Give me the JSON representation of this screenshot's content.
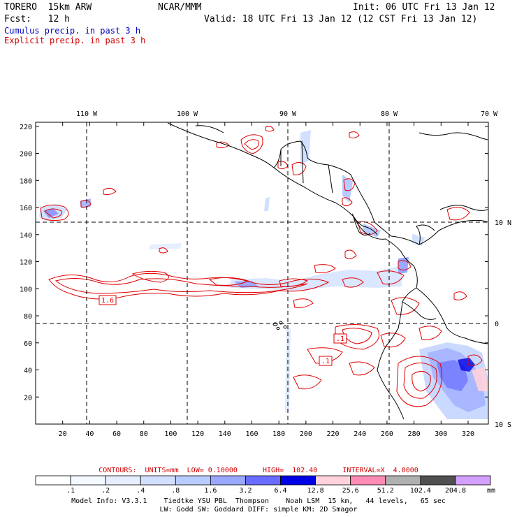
{
  "header": {
    "title": "TORERO  15km ARW",
    "org": "NCAR/MMM",
    "init": "Init: 06 UTC Fri 13 Jan 12",
    "fcst": "Fcst:   12 h",
    "valid": "Valid: 18 UTC Fri 13 Jan 12 (12 CST Fri 13 Jan 12)",
    "line_cumulus": "Cumulus precip. in past 3 h",
    "line_explicit": "Explicit precip. in past 3 h",
    "cumulus_color": "#0000c0",
    "explicit_color": "#d00000"
  },
  "map": {
    "lon_labels": [
      "110 W",
      "100 W",
      "90 W",
      "80 W",
      "70 W"
    ],
    "lat_labels": [
      "10 N",
      "0",
      "10 S"
    ],
    "x_ticks": [
      "20",
      "40",
      "60",
      "80",
      "100",
      "120",
      "140",
      "160",
      "180",
      "200",
      "220",
      "240",
      "260",
      "280",
      "300",
      "320"
    ],
    "y_ticks": [
      "20",
      "40",
      "60",
      "80",
      "100",
      "120",
      "140",
      "160",
      "180",
      "200",
      "220"
    ],
    "contour_labels": [
      "1.6",
      ".1",
      ".1"
    ],
    "contour_color": "#e00000",
    "coast_color": "#000000"
  },
  "colorbar": {
    "info": "CONTOURS:  UNITS=mm  LOW= 0.10000      HIGH=  102.40      INTERVAL=X  4.0000",
    "labels": [
      ".1",
      ".2",
      ".4",
      ".8",
      "1.6",
      "3.2",
      "6.4",
      "12.8",
      "25.6",
      "51.2",
      "102.4",
      "204.8"
    ],
    "unit": "mm",
    "colors": [
      "#ffffff",
      "#f4f8ff",
      "#e6eeff",
      "#d2e0ff",
      "#b8ccff",
      "#9aa8ff",
      "#6a6cff",
      "#0000e6",
      "#ffd2dc",
      "#ff8cb4",
      "#b0b0b0",
      "#505050",
      "#d4a0ff"
    ]
  },
  "footer": {
    "line1": "Model Info: V3.3.1    Tiedtke YSU PBL  Thompson    Noah LSM  15 km,   44 levels,   65 sec",
    "line2": "LW: Godd SW: Goddard DIFF: simple KM: 2D Smagor"
  }
}
